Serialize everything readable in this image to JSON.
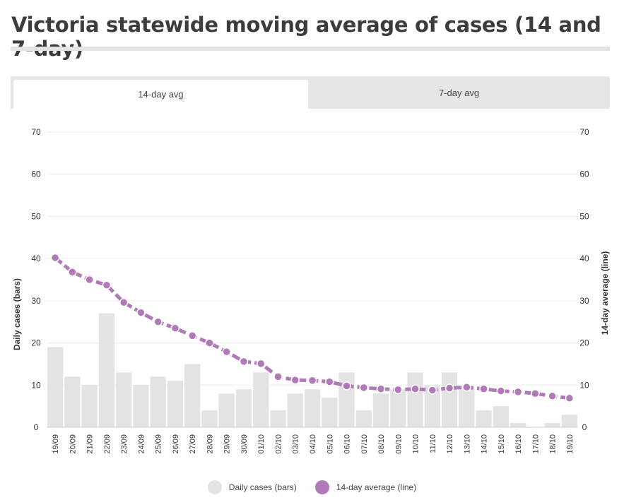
{
  "title": "Victoria statewide moving average of cases (14 and 7-day)",
  "tabs": [
    {
      "label": "14-day avg",
      "active": true
    },
    {
      "label": "7-day avg",
      "active": false
    }
  ],
  "colors": {
    "bars": "#e3e3e3",
    "line": "#b07ab8",
    "grid": "#eeeeee",
    "text": "#333333"
  },
  "legend": {
    "bars_label": "Daily cases (bars)",
    "line_label": "14-day average (line)"
  },
  "chart_data": {
    "type": "bar+line",
    "categories": [
      "19/09",
      "20/09",
      "21/09",
      "22/09",
      "23/09",
      "24/09",
      "25/09",
      "26/09",
      "27/09",
      "28/09",
      "29/09",
      "30/09",
      "01/10",
      "02/10",
      "03/10",
      "04/10",
      "05/10",
      "06/10",
      "07/10",
      "08/10",
      "09/10",
      "10/10",
      "11/10",
      "12/10",
      "13/10",
      "14/10",
      "15/10",
      "16/10",
      "17/10",
      "18/10",
      "19/10"
    ],
    "series": [
      {
        "name": "Daily cases (bars)",
        "kind": "bar",
        "axis": "left",
        "values": [
          19,
          12,
          10,
          27,
          13,
          10,
          12,
          11,
          15,
          4,
          8,
          9,
          13,
          4,
          8,
          9,
          7,
          13,
          4,
          8,
          9,
          13,
          10,
          13,
          9,
          4,
          5,
          1,
          0,
          1,
          3
        ]
      },
      {
        "name": "14-day average (line)",
        "kind": "line",
        "axis": "right",
        "values": [
          40.2,
          36.8,
          35.0,
          33.7,
          29.6,
          27.2,
          25.0,
          23.5,
          21.7,
          20.0,
          17.9,
          15.6,
          15.1,
          12.0,
          11.2,
          11.1,
          10.8,
          9.8,
          9.4,
          9.1,
          8.9,
          9.1,
          8.8,
          9.3,
          9.5,
          9.1,
          8.6,
          8.4,
          8.0,
          7.4,
          6.9
        ]
      }
    ],
    "ylabel_left": "Daily cases (bars)",
    "ylabel_right": "14-day average (line)",
    "yticks": [
      0,
      10,
      20,
      30,
      40,
      50,
      60,
      70
    ],
    "ylim": [
      0,
      70
    ],
    "legend_position": "bottom-center"
  }
}
